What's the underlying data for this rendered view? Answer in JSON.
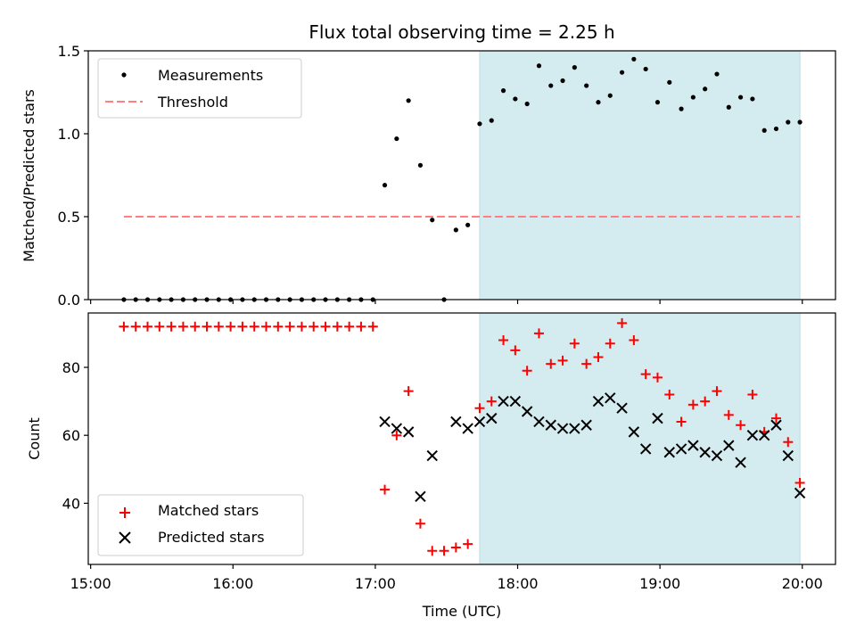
{
  "chart_data": [
    {
      "type": "scatter",
      "title": "Flux total observing time = 2.25 h",
      "xlabel": "",
      "ylabel": "Matched/Predicted stars",
      "xlim": [
        "14:59",
        "20:14"
      ],
      "ylim": [
        0,
        1.5
      ],
      "yticks": [
        0.0,
        0.5,
        1.0,
        1.5
      ],
      "ytick_labels": [
        "0.0",
        "0.5",
        "1.0",
        "1.5"
      ],
      "legend_position": "upper-left",
      "highlight_span": {
        "start": "17:44",
        "end": "19:59",
        "color": "#d4ebf0"
      },
      "series": [
        {
          "name": "Measurements",
          "marker": "dot",
          "color": "#000000",
          "x": [
            "15:14",
            "15:19",
            "15:24",
            "15:29",
            "15:34",
            "15:39",
            "15:44",
            "15:49",
            "15:54",
            "15:59",
            "16:04",
            "16:09",
            "16:14",
            "16:19",
            "16:24",
            "16:29",
            "16:34",
            "16:39",
            "16:44",
            "16:49",
            "16:54",
            "16:59",
            "17:04",
            "17:09",
            "17:14",
            "17:19",
            "17:24",
            "17:29",
            "17:34",
            "17:39",
            "17:44",
            "17:49",
            "17:54",
            "17:59",
            "18:04",
            "18:09",
            "18:14",
            "18:19",
            "18:24",
            "18:29",
            "18:34",
            "18:39",
            "18:44",
            "18:49",
            "18:54",
            "18:59",
            "19:04",
            "19:09",
            "19:14",
            "19:19",
            "19:24",
            "19:29",
            "19:34",
            "19:39",
            "19:44",
            "19:49",
            "19:54",
            "19:59"
          ],
          "y": [
            0,
            0,
            0,
            0,
            0,
            0,
            0,
            0,
            0,
            0,
            0,
            0,
            0,
            0,
            0,
            0,
            0,
            0,
            0,
            0,
            0,
            0,
            0.69,
            0.97,
            1.2,
            0.81,
            0.48,
            0,
            0.42,
            0.45,
            1.06,
            1.08,
            1.26,
            1.21,
            1.18,
            1.41,
            1.29,
            1.32,
            1.4,
            1.29,
            1.19,
            1.23,
            1.37,
            1.45,
            1.39,
            1.19,
            1.31,
            1.15,
            1.22,
            1.27,
            1.36,
            1.16,
            1.22,
            1.21,
            1.02,
            1.03,
            1.07,
            1.07
          ]
        },
        {
          "name": "Threshold",
          "marker": "dashed-line",
          "color": "#ff7f7f",
          "x": [
            "15:14",
            "19:59"
          ],
          "y": [
            0.5,
            0.5
          ]
        }
      ]
    },
    {
      "type": "scatter",
      "title": "",
      "xlabel": "Time (UTC)",
      "ylabel": "Count",
      "xlim": [
        "14:59",
        "20:14"
      ],
      "ylim": [
        22,
        96
      ],
      "yticks": [
        40,
        60,
        80
      ],
      "ytick_labels": [
        "40",
        "60",
        "80"
      ],
      "xticks": [
        "15:00",
        "16:00",
        "17:00",
        "18:00",
        "19:00",
        "20:00"
      ],
      "xtick_labels": [
        "15:00",
        "16:00",
        "17:00",
        "18:00",
        "19:00",
        "20:00"
      ],
      "legend_position": "lower-left",
      "highlight_span": {
        "start": "17:44",
        "end": "19:59",
        "color": "#d4ebf0"
      },
      "series": [
        {
          "name": "Matched stars",
          "marker": "plus",
          "color": "#ff0000",
          "x": [
            "15:14",
            "15:19",
            "15:24",
            "15:29",
            "15:34",
            "15:39",
            "15:44",
            "15:49",
            "15:54",
            "15:59",
            "16:04",
            "16:09",
            "16:14",
            "16:19",
            "16:24",
            "16:29",
            "16:34",
            "16:39",
            "16:44",
            "16:49",
            "16:54",
            "16:59",
            "17:04",
            "17:09",
            "17:14",
            "17:19",
            "17:24",
            "17:29",
            "17:34",
            "17:39",
            "17:44",
            "17:49",
            "17:54",
            "17:59",
            "18:04",
            "18:09",
            "18:14",
            "18:19",
            "18:24",
            "18:29",
            "18:34",
            "18:39",
            "18:44",
            "18:49",
            "18:54",
            "18:59",
            "19:04",
            "19:09",
            "19:14",
            "19:19",
            "19:24",
            "19:29",
            "19:34",
            "19:39",
            "19:44",
            "19:49",
            "19:54",
            "19:59"
          ],
          "y": [
            92,
            92,
            92,
            92,
            92,
            92,
            92,
            92,
            92,
            92,
            92,
            92,
            92,
            92,
            92,
            92,
            92,
            92,
            92,
            92,
            92,
            92,
            44,
            60,
            73,
            34,
            26,
            26,
            27,
            28,
            68,
            70,
            88,
            85,
            79,
            90,
            81,
            82,
            87,
            81,
            83,
            87,
            93,
            88,
            78,
            77,
            72,
            64,
            69,
            70,
            73,
            66,
            63,
            72,
            61,
            65,
            58,
            46
          ]
        },
        {
          "name": "Predicted stars",
          "marker": "x",
          "color": "#000000",
          "x": [
            "17:04",
            "17:09",
            "17:14",
            "17:19",
            "17:24",
            "17:34",
            "17:39",
            "17:44",
            "17:49",
            "17:54",
            "17:59",
            "18:04",
            "18:09",
            "18:14",
            "18:19",
            "18:24",
            "18:29",
            "18:34",
            "18:39",
            "18:44",
            "18:49",
            "18:54",
            "18:59",
            "19:04",
            "19:09",
            "19:14",
            "19:19",
            "19:24",
            "19:29",
            "19:34",
            "19:39",
            "19:44",
            "19:49",
            "19:54",
            "19:59"
          ],
          "y": [
            64,
            62,
            61,
            42,
            54,
            64,
            62,
            64,
            65,
            70,
            70,
            67,
            64,
            63,
            62,
            62,
            63,
            70,
            71,
            68,
            61,
            56,
            65,
            55,
            56,
            57,
            55,
            54,
            57,
            52,
            60,
            60,
            63,
            54,
            43
          ]
        }
      ]
    }
  ]
}
